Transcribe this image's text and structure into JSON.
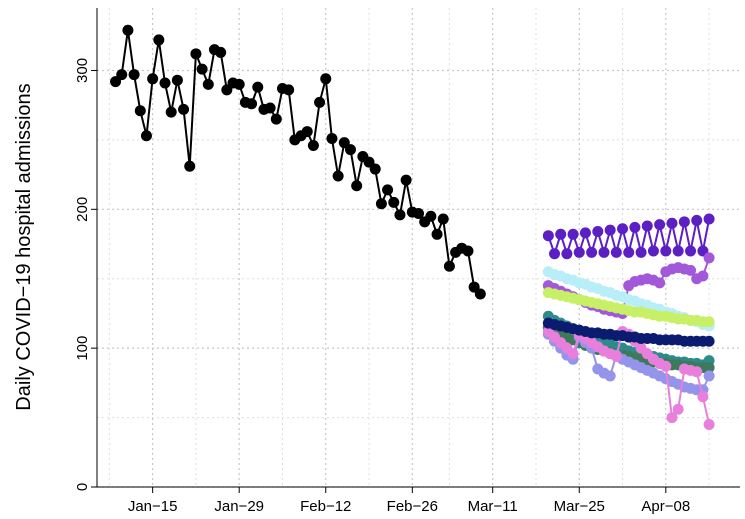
{
  "chart_data": {
    "type": "line",
    "ylabel": "Daily COVID−19 hospital admissions",
    "xlim": [
      "Jan−06",
      "Apr−20"
    ],
    "xticks": [
      "Jan−15",
      "Jan−29",
      "Feb−12",
      "Feb−26",
      "Mar−11",
      "Mar−25",
      "Apr−08"
    ],
    "xminor": [
      "Jan−08",
      "Jan−22",
      "Feb−05",
      "Feb−19",
      "Mar−04",
      "Mar−18",
      "Apr−01",
      "Apr−15"
    ],
    "ylim": [
      0,
      345
    ],
    "yticks": [
      0,
      100,
      200,
      300
    ],
    "yminor": [
      50,
      150,
      250
    ],
    "grid": true,
    "series": [
      {
        "color": "#5b1fc4",
        "x": [
          "Mar−20",
          "Mar−21",
          "Mar−22",
          "Mar−23",
          "Mar−24",
          "Mar−25",
          "Mar−26",
          "Mar−27",
          "Mar−28",
          "Mar−29",
          "Mar−30",
          "Mar−31",
          "Apr−01",
          "Apr−02",
          "Apr−03",
          "Apr−04",
          "Apr−05",
          "Apr−06",
          "Apr−07",
          "Apr−08",
          "Apr−09",
          "Apr−10",
          "Apr−11",
          "Apr−12",
          "Apr−13",
          "Apr−14",
          "Apr−15"
        ],
        "values": [
          181,
          168,
          182,
          168,
          182,
          169,
          183,
          169,
          184,
          169,
          185,
          169,
          186,
          169,
          187,
          169,
          188,
          170,
          189,
          170,
          190,
          170,
          191,
          170,
          192,
          170,
          193
        ]
      },
      {
        "color": "#a259d9",
        "x": [
          "Mar−20",
          "Mar−21",
          "Mar−22",
          "Mar−23",
          "Mar−24",
          "Mar−25",
          "Mar−26",
          "Mar−27",
          "Mar−28",
          "Mar−29",
          "Mar−30",
          "Mar−31",
          "Apr−01",
          "Apr−02",
          "Apr−03",
          "Apr−04",
          "Apr−05",
          "Apr−06",
          "Apr−07",
          "Apr−08",
          "Apr−09",
          "Apr−10",
          "Apr−11",
          "Apr−12",
          "Apr−13",
          "Apr−14",
          "Apr−15"
        ],
        "values": [
          145,
          143,
          141,
          139,
          137,
          135,
          133,
          131,
          130,
          128,
          127,
          126,
          125,
          145,
          148,
          149,
          150,
          149,
          147,
          155,
          157,
          158,
          157,
          156,
          150,
          152,
          165
        ]
      },
      {
        "color": "#b7eef7",
        "x": [
          "Mar−20",
          "Mar−21",
          "Mar−22",
          "Mar−23",
          "Mar−24",
          "Mar−25",
          "Mar−26",
          "Mar−27",
          "Mar−28",
          "Mar−29",
          "Mar−30",
          "Mar−31",
          "Apr−01",
          "Apr−02",
          "Apr−03",
          "Apr−04",
          "Apr−05",
          "Apr−06",
          "Apr−07",
          "Apr−08",
          "Apr−09",
          "Apr−10",
          "Apr−11",
          "Apr−12",
          "Apr−13",
          "Apr−14",
          "Apr−15"
        ],
        "values": [
          155,
          153,
          152,
          150,
          149,
          147,
          146,
          144,
          143,
          141,
          140,
          138,
          137,
          135,
          134,
          132,
          131,
          129,
          128,
          126,
          125,
          123,
          122,
          120,
          119,
          117,
          116
        ]
      },
      {
        "color": "#c8f066",
        "x": [
          "Mar−20",
          "Mar−21",
          "Mar−22",
          "Mar−23",
          "Mar−24",
          "Mar−25",
          "Mar−26",
          "Mar−27",
          "Mar−28",
          "Mar−29",
          "Mar−30",
          "Mar−31",
          "Apr−01",
          "Apr−02",
          "Apr−03",
          "Apr−04",
          "Apr−05",
          "Apr−06",
          "Apr−07",
          "Apr−08",
          "Apr−09",
          "Apr−10",
          "Apr−11",
          "Apr−12",
          "Apr−13",
          "Apr−14",
          "Apr−15"
        ],
        "values": [
          140,
          139,
          138,
          137,
          136,
          135,
          134,
          133,
          132,
          131,
          130,
          129,
          128,
          127,
          126,
          126,
          125,
          124,
          123,
          123,
          122,
          121,
          121,
          120,
          120,
          119,
          119
        ]
      },
      {
        "color": "#2e8b8b",
        "x": [
          "Mar−20",
          "Mar−21",
          "Mar−22",
          "Mar−23",
          "Mar−24",
          "Mar−25",
          "Mar−26",
          "Mar−27",
          "Mar−28",
          "Mar−29",
          "Mar−30",
          "Mar−31",
          "Apr−01",
          "Apr−02",
          "Apr−03",
          "Apr−04",
          "Apr−05",
          "Apr−06",
          "Apr−07",
          "Apr−08",
          "Apr−09",
          "Apr−10",
          "Apr−11",
          "Apr−12",
          "Apr−13",
          "Apr−14",
          "Apr−15"
        ],
        "values": [
          123,
          120,
          118,
          116,
          114,
          112,
          110,
          108,
          106,
          104,
          103,
          101,
          100,
          98,
          97,
          96,
          95,
          94,
          93,
          92,
          91,
          90,
          90,
          89,
          89,
          88,
          91
        ]
      },
      {
        "color": "#3d7a5a",
        "x": [
          "Mar−20",
          "Mar−21",
          "Mar−22",
          "Mar−23",
          "Mar−24",
          "Mar−25",
          "Mar−26",
          "Mar−27",
          "Mar−28",
          "Mar−29",
          "Mar−30",
          "Mar−31",
          "Apr−01",
          "Apr−02",
          "Apr−03",
          "Apr−04",
          "Apr−05",
          "Apr−06",
          "Apr−07",
          "Apr−08",
          "Apr−09",
          "Apr−10",
          "Apr−11",
          "Apr−12",
          "Apr−13",
          "Apr−14",
          "Apr−15"
        ],
        "values": [
          115,
          112,
          110,
          108,
          106,
          104,
          102,
          100,
          99,
          98,
          97,
          96,
          95,
          94,
          93,
          92,
          91,
          90,
          89,
          89,
          88,
          88,
          87,
          87,
          86,
          86,
          86
        ]
      },
      {
        "color": "#9494ea",
        "x": [
          "Mar−20",
          "Mar−21",
          "Mar−22",
          "Mar−23",
          "Mar−24",
          "Mar−25",
          "Mar−26",
          "Mar−27",
          "Mar−28",
          "Mar−29",
          "Mar−30",
          "Mar−31",
          "Apr−01",
          "Apr−02",
          "Apr−03",
          "Apr−04",
          "Apr−05",
          "Apr−06",
          "Apr−07",
          "Apr−08",
          "Apr−09",
          "Apr−10",
          "Apr−11",
          "Apr−12",
          "Apr−13",
          "Apr−14",
          "Apr−15"
        ],
        "values": [
          110,
          105,
          100,
          95,
          92,
          108,
          104,
          100,
          85,
          82,
          80,
          95,
          92,
          90,
          88,
          86,
          84,
          82,
          80,
          78,
          76,
          74,
          72,
          71,
          70,
          70,
          80
        ]
      },
      {
        "color": "#e87fdc",
        "x": [
          "Mar−20",
          "Mar−21",
          "Mar−22",
          "Mar−23",
          "Mar−24",
          "Mar−25",
          "Mar−26",
          "Mar−27",
          "Mar−28",
          "Mar−29",
          "Mar−30",
          "Mar−31",
          "Apr−01",
          "Apr−02",
          "Apr−03",
          "Apr−04",
          "Apr−05",
          "Apr−06",
          "Apr−07",
          "Apr−08",
          "Apr−09",
          "Apr−10",
          "Apr−11",
          "Apr−12",
          "Apr−13",
          "Apr−14",
          "Apr−15"
        ],
        "values": [
          112,
          108,
          104,
          100,
          96,
          110,
          107,
          104,
          101,
          98,
          96,
          94,
          112,
          110,
          105,
          100,
          96,
          92,
          89,
          87,
          50,
          56,
          85,
          84,
          83,
          65,
          45
        ]
      },
      {
        "color": "#0b1c70",
        "x": [
          "Mar−20",
          "Mar−21",
          "Mar−22",
          "Mar−23",
          "Mar−24",
          "Mar−25",
          "Mar−26",
          "Mar−27",
          "Mar−28",
          "Mar−29",
          "Mar−30",
          "Mar−31",
          "Apr−01",
          "Apr−02",
          "Apr−03",
          "Apr−04",
          "Apr−05",
          "Apr−06",
          "Apr−07",
          "Apr−08",
          "Apr−09",
          "Apr−10",
          "Apr−11",
          "Apr−12",
          "Apr−13",
          "Apr−14",
          "Apr−15"
        ],
        "values": [
          118,
          117,
          116,
          115,
          114,
          113,
          112,
          111,
          111,
          110,
          110,
          109,
          109,
          108,
          108,
          107,
          107,
          107,
          106,
          106,
          106,
          106,
          105,
          105,
          105,
          105,
          105
        ]
      },
      {
        "color": "#000000",
        "x": [
          "Jan−09",
          "Jan−10",
          "Jan−11",
          "Jan−12",
          "Jan−13",
          "Jan−14",
          "Jan−15",
          "Jan−16",
          "Jan−17",
          "Jan−18",
          "Jan−19",
          "Jan−20",
          "Jan−21",
          "Jan−22",
          "Jan−23",
          "Jan−24",
          "Jan−25",
          "Jan−26",
          "Jan−27",
          "Jan−28",
          "Jan−29",
          "Jan−30",
          "Jan−31",
          "Feb−01",
          "Feb−02",
          "Feb−03",
          "Feb−04",
          "Feb−05",
          "Feb−06",
          "Feb−07",
          "Feb−08",
          "Feb−09",
          "Feb−10",
          "Feb−11",
          "Feb−12",
          "Feb−13",
          "Feb−14",
          "Feb−15",
          "Feb−16",
          "Feb−17",
          "Feb−18",
          "Feb−19",
          "Feb−20",
          "Feb−21",
          "Feb−22",
          "Feb−23",
          "Feb−24",
          "Feb−25",
          "Feb−26",
          "Feb−27",
          "Feb−28",
          "Mar−01",
          "Mar−02",
          "Mar−03",
          "Mar−04",
          "Mar−05",
          "Mar−06",
          "Mar−07",
          "Mar−08",
          "Mar−09"
        ],
        "values": [
          292,
          297,
          329,
          297,
          271,
          253,
          294,
          322,
          291,
          270,
          293,
          272,
          231,
          312,
          301,
          290,
          315,
          313,
          286,
          291,
          290,
          277,
          276,
          288,
          272,
          273,
          265,
          287,
          286,
          250,
          253,
          256,
          246,
          277,
          294,
          251,
          224,
          248,
          243,
          217,
          238,
          234,
          229,
          204,
          214,
          205,
          196,
          221,
          198,
          197,
          191,
          195,
          182,
          193,
          159,
          169,
          172,
          170,
          144,
          139
        ]
      }
    ]
  }
}
